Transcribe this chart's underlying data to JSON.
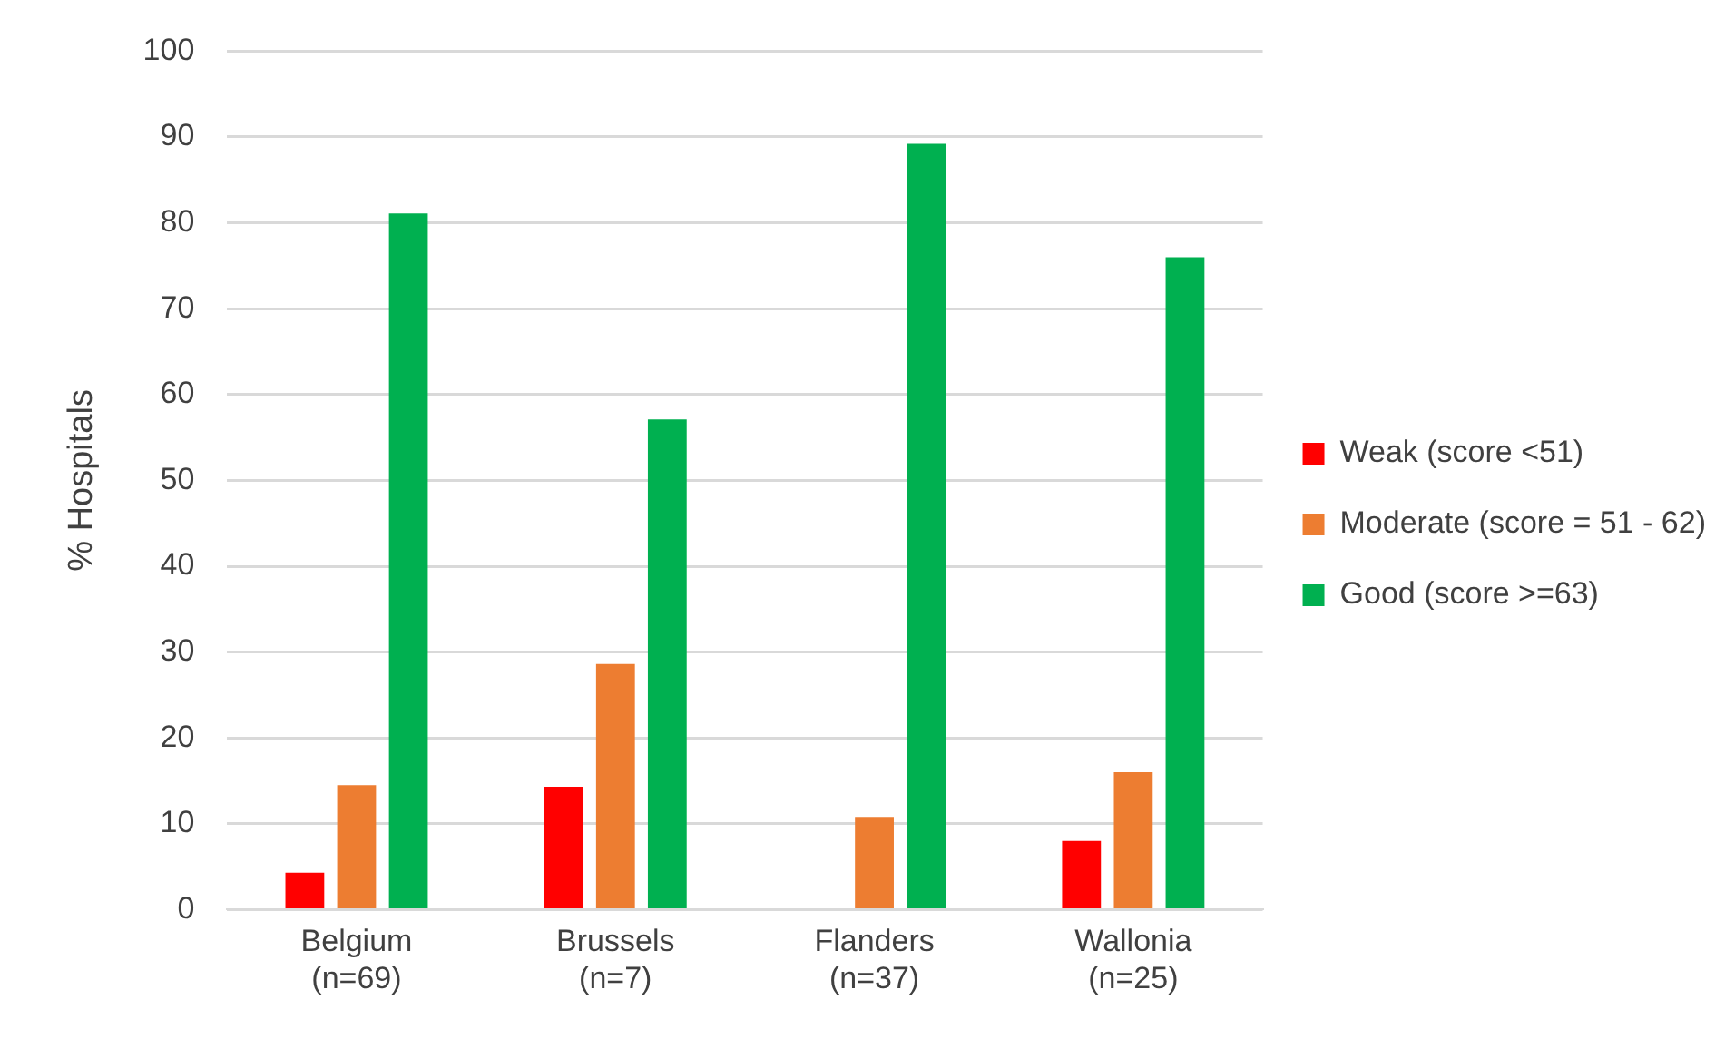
{
  "chart_data": {
    "type": "bar",
    "ylabel": "% Hospitals",
    "categories": [
      "Belgium\n(n=69)",
      "Brussels\n(n=7)",
      "Flanders\n(n=37)",
      "Wallonia\n(n=25)"
    ],
    "series": [
      {
        "name": "Weak (score <51)",
        "color": "#ff0000",
        "values": [
          4.3,
          14.3,
          0,
          8
        ]
      },
      {
        "name": "Moderate (score = 51 - 62)",
        "color": "#ed7d31",
        "values": [
          14.5,
          28.6,
          10.8,
          16
        ]
      },
      {
        "name": "Good (score >=63)",
        "color": "#00b050",
        "values": [
          81.1,
          57.1,
          89.2,
          76
        ]
      }
    ],
    "ylim": [
      0,
      100
    ],
    "yticks": [
      0,
      10,
      20,
      30,
      40,
      50,
      60,
      70,
      80,
      90,
      100
    ],
    "grid": "y",
    "legend": "right"
  }
}
